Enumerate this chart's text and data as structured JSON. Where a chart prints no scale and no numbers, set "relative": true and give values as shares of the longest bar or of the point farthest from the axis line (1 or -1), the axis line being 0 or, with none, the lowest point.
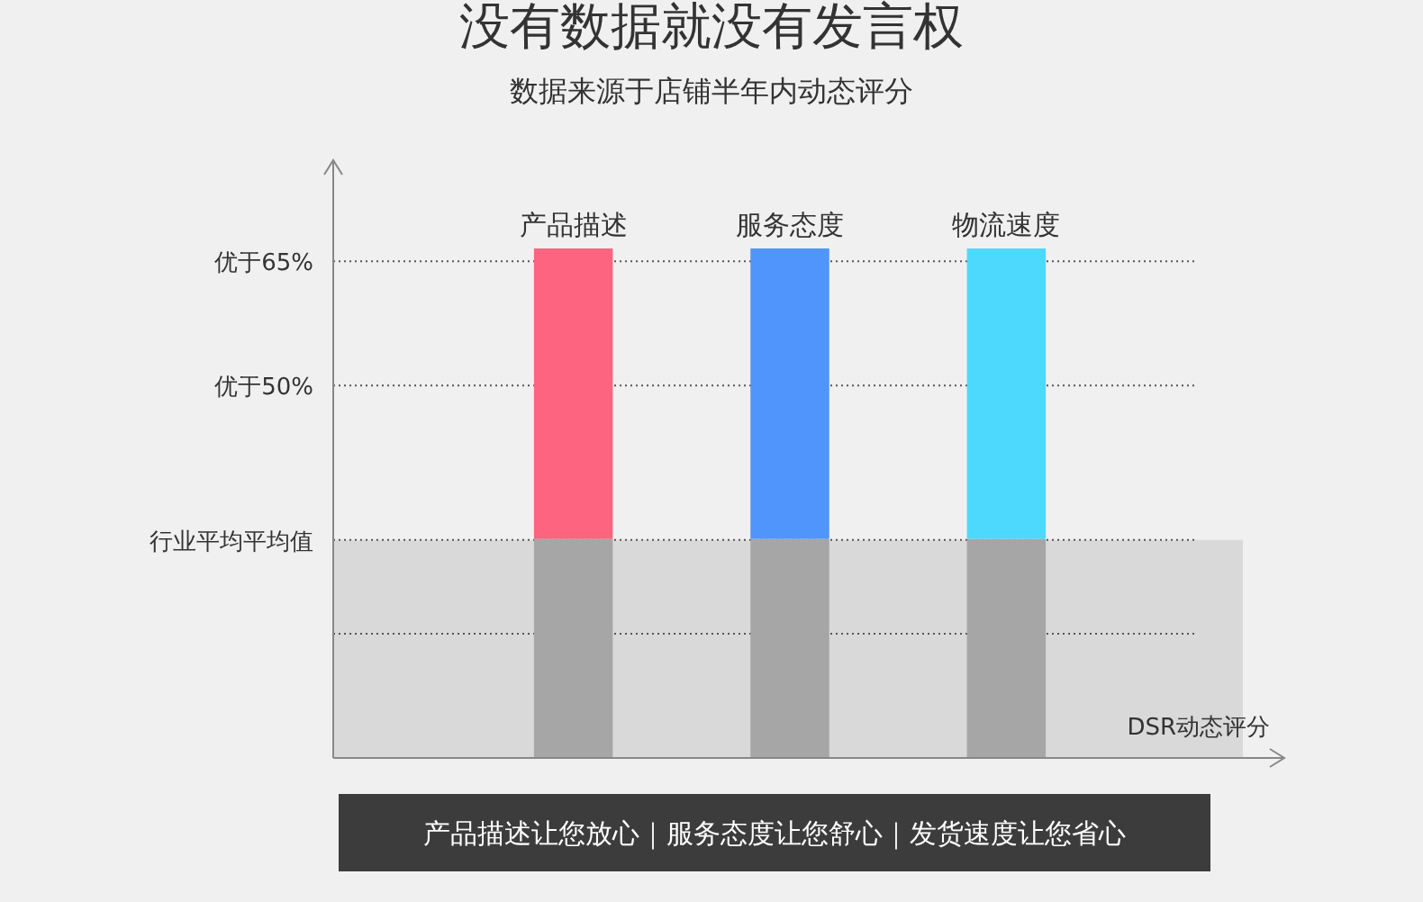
{
  "chart_data": {
    "type": "bar",
    "title": "没有数据就没有发言权",
    "subtitle": "数据来源于店铺半年内动态评分",
    "xlabel": "DSR动态评分",
    "relative": true,
    "stacked": true,
    "categories": [
      "产品描述",
      "服务态度",
      "物流速度"
    ],
    "series": [
      {
        "color": "#a6a6a6",
        "values": [
          0.43,
          0.43,
          0.43
        ]
      },
      {
        "colors": [
          "#fc6480",
          "#4f95fb",
          "#4cd9fd"
        ],
        "values": [
          0.57,
          0.57,
          0.57
        ]
      }
    ],
    "ref_lines": [
      {
        "axis": "y",
        "value": 0.975,
        "label": "优于65%",
        "line_style": "dotted"
      },
      {
        "axis": "y",
        "value": 0.731,
        "label": "优于50%",
        "line_style": "dotted"
      },
      {
        "axis": "y",
        "value": 0.428,
        "label": "行业平均平均值",
        "line_style": "dotted"
      },
      {
        "axis": "y",
        "value": 0.244,
        "label": null,
        "line_style": "dotted"
      }
    ],
    "bands": [
      {
        "axis": "y",
        "from": 0,
        "to": 0.428,
        "label": null,
        "color": "#d9d9d9"
      }
    ],
    "annotations": [
      "产品描述让您放心｜服务态度让您舒心｜发货速度让您省心"
    ]
  }
}
